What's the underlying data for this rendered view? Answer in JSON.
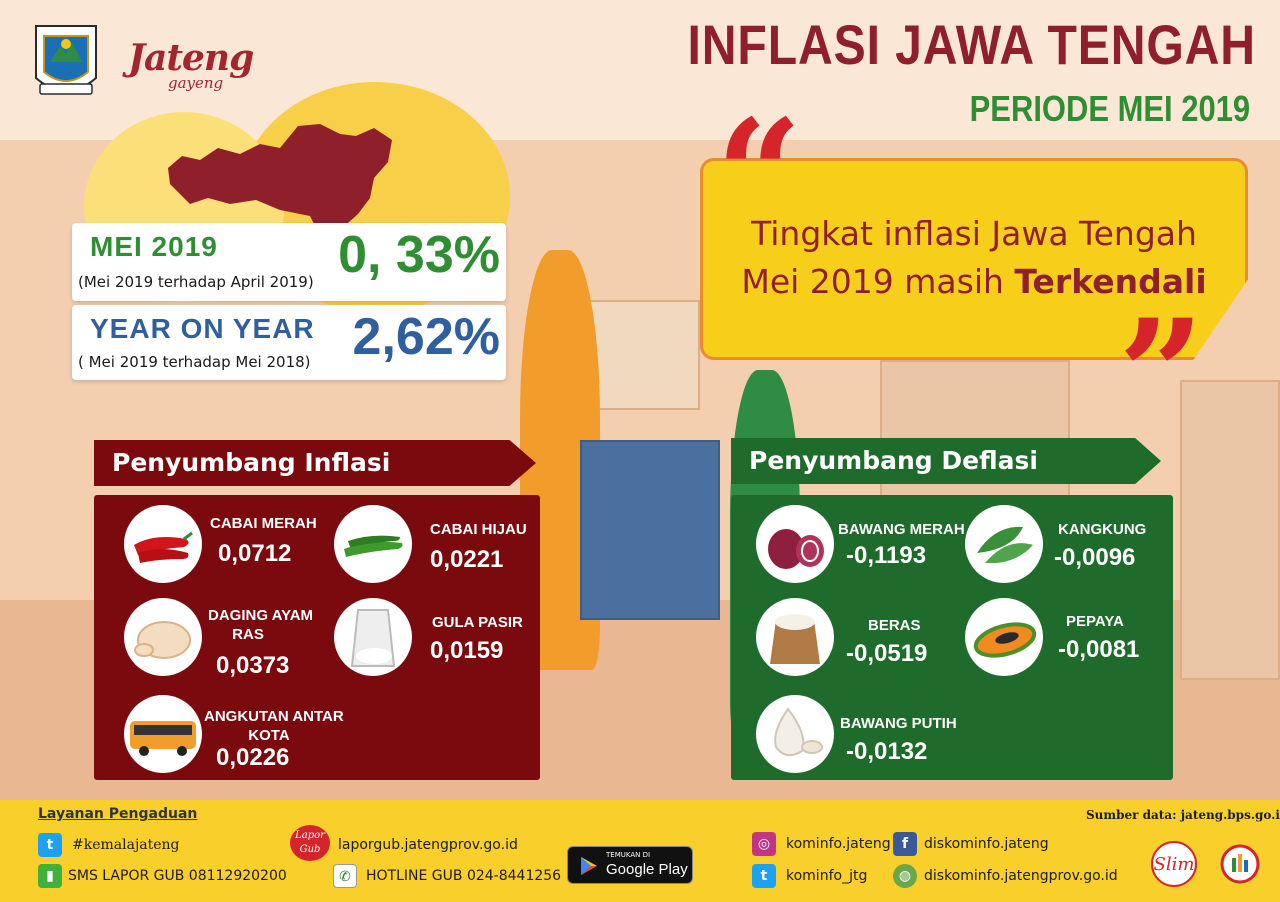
{
  "header": {
    "title": "INFLASI JAWA TENGAH",
    "subtitle": "PERIODE MEI 2019",
    "brand_main": "Jateng",
    "brand_sub": "gayeng"
  },
  "stats": {
    "monthly": {
      "label": "MEI 2019",
      "desc": "(Mei 2019 terhadap April 2019)",
      "value": "0, 33%"
    },
    "yearly": {
      "label": "YEAR ON YEAR",
      "desc": "( Mei 2019 terhadap Mei 2018)",
      "value": "2,62%"
    }
  },
  "quote": {
    "line1": "Tingkat inflasi Jawa Tengah",
    "line2_prefix": "Mei 2019 masih ",
    "line2_bold": "Terkendali"
  },
  "inflation": {
    "title": "Penyumbang Inflasi",
    "items": [
      {
        "name": "CABAI MERAH",
        "value": "0,0712",
        "icon": "red-chili-icon"
      },
      {
        "name": "CABAI HIJAU",
        "value": "0,0221",
        "icon": "green-chili-icon"
      },
      {
        "name_line1": "DAGING AYAM",
        "name_line2": "RAS",
        "value": "0,0373",
        "icon": "chicken-icon"
      },
      {
        "name": "GULA PASIR",
        "value": "0,0159",
        "icon": "sugar-icon"
      },
      {
        "name_line1": "ANGKUTAN ANTAR",
        "name_line2": "KOTA",
        "value": "0,0226",
        "icon": "bus-icon"
      }
    ]
  },
  "deflation": {
    "title": "Penyumbang Deflasi",
    "items": [
      {
        "name": "BAWANG MERAH",
        "value": "-0,1193",
        "icon": "shallot-icon"
      },
      {
        "name": "KANGKUNG",
        "value": "-0,0096",
        "icon": "water-spinach-icon"
      },
      {
        "name": "BERAS",
        "value": "-0,0519",
        "icon": "rice-sack-icon"
      },
      {
        "name": "PEPAYA",
        "value": "-0,0081",
        "icon": "papaya-icon"
      },
      {
        "name": "BAWANG PUTIH",
        "value": "-0,0132",
        "icon": "garlic-icon"
      }
    ]
  },
  "footer": {
    "complaint_title": "Layanan Pengaduan",
    "twitter_tag": "#kemalajateng",
    "sms": "SMS LAPOR GUB 08112920200",
    "lapor_logo": "Lapor Gub",
    "lapor_url": "laporgub.jatengprov.go.id",
    "hotline": "HOTLINE GUB 024-8441256",
    "play_small": "TEMUKAN DI",
    "play_big": "Google Play",
    "instagram": "kominfo.jateng",
    "facebook": "diskominfo.jateng",
    "twitter": "kominfo_jtg",
    "website": "diskominfo.jatengprov.go.id",
    "source": "Sumber data: jateng.bps.go.id"
  },
  "colors": {
    "maroon": "#7b0a0f",
    "green": "#1e6b2b",
    "title": "#8f1f2b",
    "subtitle": "#2f8d32",
    "yellow": "#f7cf1b"
  }
}
